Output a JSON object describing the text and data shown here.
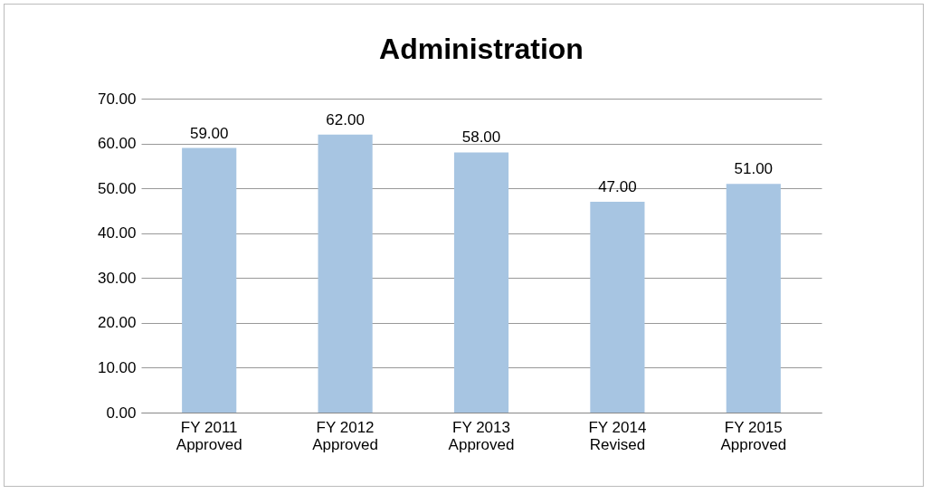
{
  "chart_data": {
    "type": "bar",
    "title": "Administration",
    "categories": [
      "FY 2011\nApproved",
      "FY 2012\nApproved",
      "FY 2013\nApproved",
      "FY 2014\nRevised",
      "FY 2015\nApproved"
    ],
    "values": [
      59,
      62,
      58,
      47,
      51
    ],
    "value_labels": [
      "59.00",
      "62.00",
      "58.00",
      "47.00",
      "51.00"
    ],
    "color": "#a7c5e2",
    "ylim": [
      0,
      70
    ],
    "yticks": [
      {
        "value": 0,
        "label": "0.00"
      },
      {
        "value": 10,
        "label": "10.00"
      },
      {
        "value": 20,
        "label": "20.00"
      },
      {
        "value": 30,
        "label": "30.00"
      },
      {
        "value": 40,
        "label": "40.00"
      },
      {
        "value": 50,
        "label": "50.00"
      },
      {
        "value": 60,
        "label": "60.00"
      },
      {
        "value": 70,
        "label": "70.00"
      }
    ],
    "grid": "y"
  }
}
